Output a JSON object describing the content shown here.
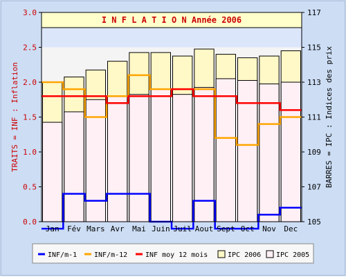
{
  "chart_data": {
    "type": "bar",
    "title": "I N F L A T I O N  Année 2006",
    "categories": [
      "Jan",
      "Fév",
      "Mars",
      "Avr",
      "Mai",
      "Juin",
      "Juil",
      "Aout",
      "Sept",
      "Oct",
      "Nov",
      "Dec"
    ],
    "left_axis": {
      "label": "TRAITS = INF : Inflation",
      "ylim": [
        0,
        3.0
      ],
      "ticks": [
        "0.0",
        "0.5",
        "1.0",
        "1.5",
        "2.0",
        "2.5",
        "3.0"
      ]
    },
    "right_axis": {
      "label": "BARRES = IPC : Indices des prix",
      "ylim": [
        105,
        117
      ],
      "ticks": [
        "105",
        "107",
        "109",
        "111",
        "113",
        "115",
        "117"
      ]
    },
    "bars": [
      {
        "name": "IPC 2006",
        "axis": "right",
        "values": [
          113.0,
          113.3,
          113.7,
          114.2,
          114.7,
          114.7,
          114.5,
          114.9,
          114.6,
          114.4,
          114.5,
          114.8
        ]
      },
      {
        "name": "IPC 2005",
        "axis": "right",
        "values": [
          110.7,
          111.3,
          112.0,
          112.2,
          112.3,
          112.6,
          112.3,
          112.7,
          113.2,
          113.1,
          112.9,
          113.0
        ]
      }
    ],
    "series": [
      {
        "name": "INF/m-1",
        "axis": "left",
        "values": [
          -0.1,
          0.4,
          0.3,
          0.4,
          0.4,
          0.0,
          -0.1,
          0.3,
          -0.1,
          -0.1,
          0.1,
          0.2
        ]
      },
      {
        "name": "INF/m-12",
        "axis": "left",
        "values": [
          2.0,
          1.9,
          1.5,
          1.8,
          2.1,
          1.9,
          1.9,
          1.9,
          1.2,
          1.1,
          1.4,
          1.5
        ]
      },
      {
        "name": "INF moy 12 mois",
        "axis": "left",
        "values": [
          1.8,
          1.8,
          1.8,
          1.7,
          1.8,
          1.8,
          1.9,
          1.8,
          1.8,
          1.7,
          1.7,
          1.6
        ]
      }
    ],
    "colors": {
      "frame_bg": "#ccddf4",
      "plot_bg": "#f4f4f4",
      "upper_band": "#dce6fb",
      "ipc2006_fill": "#fff8c7",
      "ipc2005_fill": "#fff0f5",
      "inf_m1": "#0000ff",
      "inf_m12": "#ffa500",
      "inf_moy": "#ff0000",
      "title_bg": "#ffffcc",
      "title_text": "#cc0000",
      "left_axis_text": "#cc0000"
    },
    "legend": {
      "placement": "bottom"
    },
    "grid": false
  }
}
